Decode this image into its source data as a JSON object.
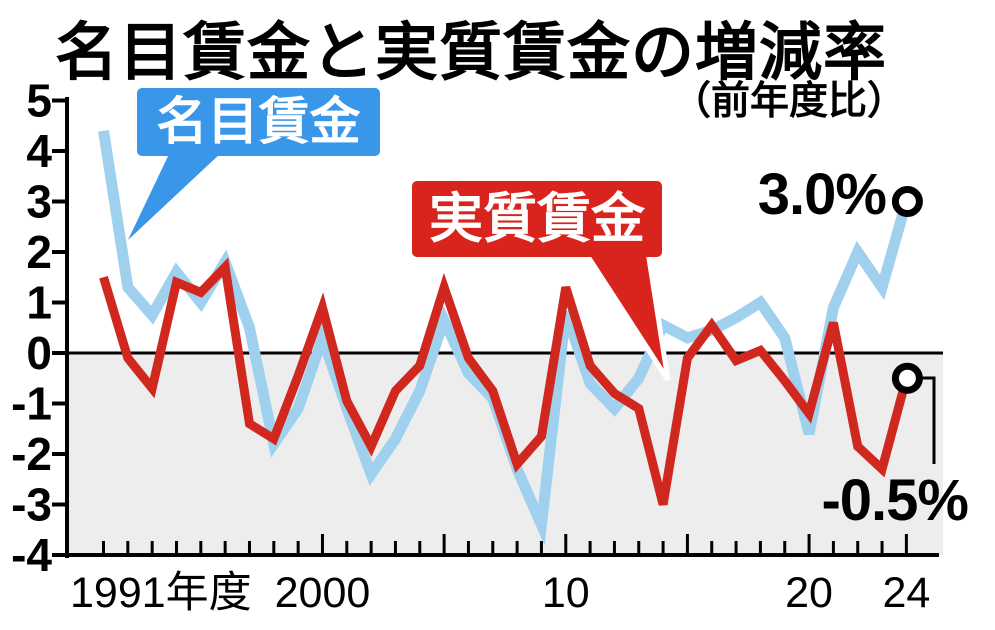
{
  "title": "名目賃金と実質賃金の増減率",
  "subtitle": "（前年度比）",
  "legend": {
    "nominal": {
      "label": "名目賃金",
      "bg": "#3a96e8"
    },
    "real": {
      "label": "実質賃金",
      "bg": "#d8241c"
    }
  },
  "end_labels": {
    "nominal": "3.0%",
    "real": "-0.5%"
  },
  "chart_data": {
    "type": "line",
    "x_unit": "fiscal year",
    "x": [
      1991,
      1992,
      1993,
      1994,
      1995,
      1996,
      1997,
      1998,
      1999,
      2000,
      2001,
      2002,
      2003,
      2004,
      2005,
      2006,
      2007,
      2008,
      2009,
      2010,
      2011,
      2012,
      2013,
      2014,
      2015,
      2016,
      2017,
      2018,
      2019,
      2020,
      2021,
      2022,
      2023,
      2024
    ],
    "series": [
      {
        "name": "名目賃金",
        "color": "#9fd0ee",
        "values": [
          4.4,
          1.3,
          0.75,
          1.6,
          1.0,
          1.8,
          0.5,
          -1.8,
          -1.1,
          0.3,
          -1.1,
          -2.4,
          -1.7,
          -0.75,
          0.65,
          -0.4,
          -0.9,
          -2.3,
          -3.4,
          0.8,
          -0.6,
          -1.1,
          -0.5,
          0.55,
          0.3,
          0.45,
          0.7,
          1.0,
          0.3,
          -1.6,
          0.9,
          2.0,
          1.3,
          3.0
        ]
      },
      {
        "name": "実質賃金",
        "color": "#d0271f",
        "values": [
          1.5,
          -0.1,
          -0.7,
          1.4,
          1.2,
          1.7,
          -1.4,
          -1.7,
          -0.45,
          0.9,
          -0.95,
          -1.85,
          -0.75,
          -0.25,
          1.3,
          -0.1,
          -0.75,
          -2.2,
          -1.65,
          1.3,
          -0.25,
          -0.8,
          -1.1,
          -3.0,
          -0.1,
          0.55,
          -0.15,
          0.05,
          -0.55,
          -1.2,
          0.6,
          -1.85,
          -2.3,
          -0.5
        ]
      }
    ],
    "ylim": [
      -4,
      5
    ],
    "yticks": [
      5,
      4,
      3,
      2,
      1,
      0,
      -1,
      -2,
      -3,
      -4
    ],
    "xtick_labels": [
      {
        "year": 1991,
        "label": "1991年度"
      },
      {
        "year": 2000,
        "label": "2000"
      },
      {
        "year": 2010,
        "label": "10"
      },
      {
        "year": 2020,
        "label": "20"
      },
      {
        "year": 2024,
        "label": "24"
      }
    ],
    "major_tick_years": [
      2000,
      2005,
      2010,
      2015,
      2020,
      2024
    ],
    "zero_line": true,
    "grid": false,
    "negative_region_shade": "#ededed",
    "axis_color": "#000000",
    "end_markers": {
      "shape": "open-circle",
      "fill": "#ffffff",
      "ring": "#000000"
    }
  }
}
